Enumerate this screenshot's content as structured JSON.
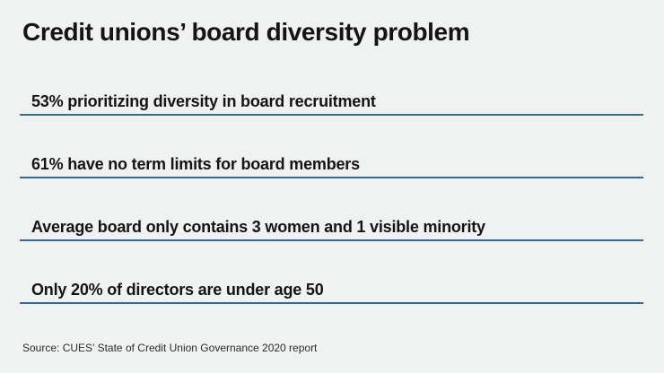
{
  "colors": {
    "background": "#f0f1f1",
    "text": "#141414",
    "accent_line": "#35699a",
    "source_text": "#2b2b2b"
  },
  "header": {
    "title": "Credit unions’ board diversity problem"
  },
  "stats": {
    "items": [
      {
        "label": "53% prioritizing diversity in board recruitment"
      },
      {
        "label": "61% have no term limits for board members"
      },
      {
        "label": "Average board only contains 3 women and 1 visible minority"
      },
      {
        "label": "Only 20% of directors are under age 50"
      }
    ]
  },
  "footer": {
    "source": "Source: CUES’ State of Credit Union Governance 2020 report"
  },
  "chart_data": {
    "type": "table",
    "title": "Credit unions’ board diversity problem",
    "rows": [
      {
        "statistic": "53%",
        "description": "prioritizing diversity in board recruitment"
      },
      {
        "statistic": "61%",
        "description": "have no term limits for board members"
      },
      {
        "statistic": "3 women and 1 visible minority",
        "description": "average board composition"
      },
      {
        "statistic": "20%",
        "description": "of directors are under age 50"
      }
    ],
    "source": "Source: CUES’ State of Credit Union Governance 2020 report",
    "layout": "stacked list of statistics, each with a horizontal blue rule beneath"
  }
}
